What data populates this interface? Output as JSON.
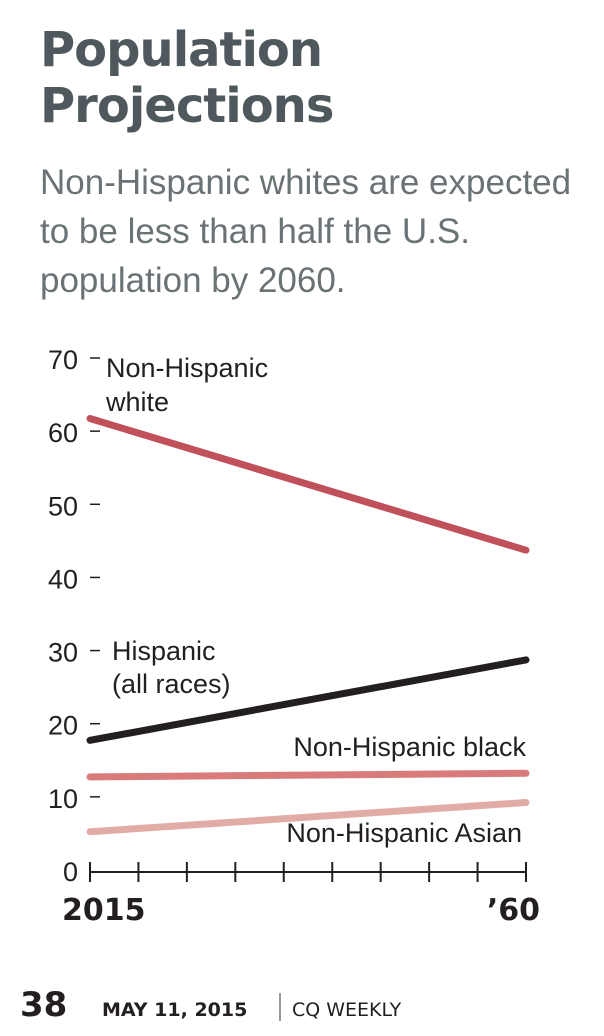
{
  "chart_data": {
    "type": "line",
    "title": "Population Projections",
    "subtitle": "Non-Hispanic whites are expected to be less than half the U.S. population by 2060.",
    "x_labels": [
      "2015",
      "’60"
    ],
    "x": [
      2015,
      2060
    ],
    "xlim": [
      2015,
      2060
    ],
    "ylim": [
      0,
      70
    ],
    "y_ticks": [
      0,
      10,
      20,
      30,
      40,
      50,
      60,
      70
    ],
    "ylabel": "",
    "xlabel": "",
    "series": [
      {
        "name": "Non-Hispanic white",
        "label_lines": [
          "Non-Hispanic",
          "white"
        ],
        "values": [
          62,
          44
        ],
        "color": "#c0505a"
      },
      {
        "name": "Hispanic (all races)",
        "label_lines": [
          "Hispanic",
          "(all races)"
        ],
        "values": [
          18,
          29
        ],
        "color": "#231f20"
      },
      {
        "name": "Non-Hispanic black",
        "label_lines": [
          "Non-Hispanic black"
        ],
        "values": [
          13,
          13.5
        ],
        "color": "#d97a7b"
      },
      {
        "name": "Non-Hispanic Asian",
        "label_lines": [
          "Non-Hispanic Asian"
        ],
        "values": [
          5.5,
          9.5
        ],
        "color": "#e2aca6"
      }
    ]
  },
  "footer": {
    "page_number": "38",
    "date": "MAY 11, 2015",
    "publication": "CQ WEEKLY"
  }
}
